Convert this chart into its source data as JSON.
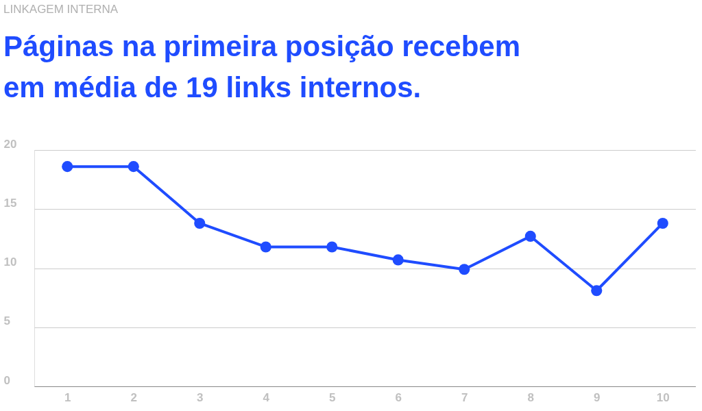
{
  "chart_data": {
    "type": "line",
    "subtitle": "LINKAGEM INTERNA",
    "title": "Páginas na primeira posição recebem\nem média de 19 links internos.",
    "categories": [
      "1",
      "2",
      "3",
      "4",
      "5",
      "6",
      "7",
      "8",
      "9",
      "10"
    ],
    "series": [
      {
        "color": "#1f4cff",
        "values": [
          18.6,
          18.6,
          13.8,
          11.8,
          11.8,
          10.7,
          9.9,
          12.7,
          8.1,
          13.8
        ]
      }
    ],
    "ylim": [
      0,
      20
    ],
    "yticks": [
      0,
      5,
      10,
      15,
      20
    ],
    "grid": "y",
    "marker": "circle",
    "line_style": "solid"
  }
}
